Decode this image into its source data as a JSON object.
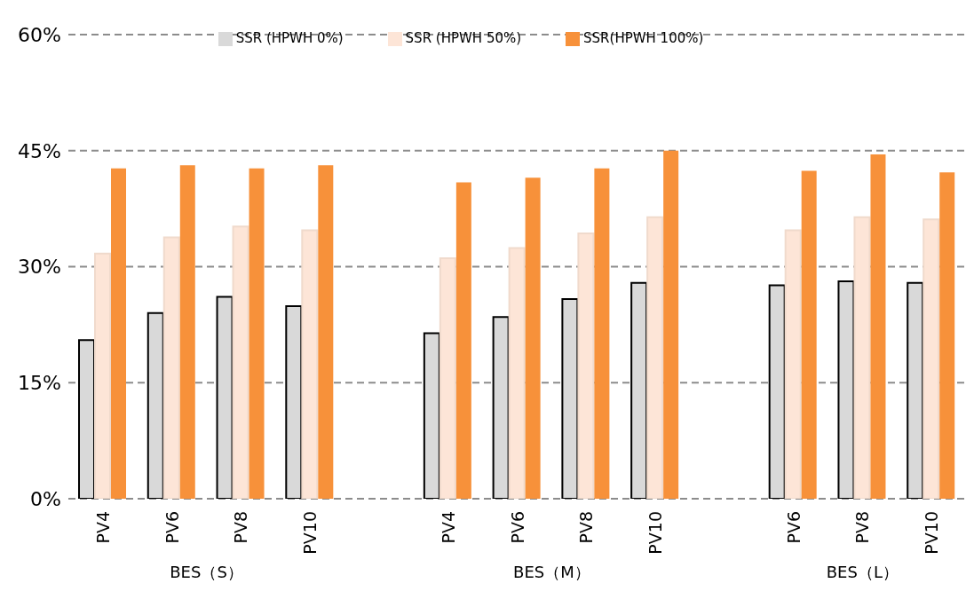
{
  "chart_data": {
    "type": "bar",
    "categories": [
      "PV4",
      "PV6",
      "PV8",
      "PV10",
      null,
      "PV4",
      "PV6",
      "PV8",
      "PV10",
      null,
      "PV6",
      "PV8",
      "PV10"
    ],
    "series": [
      {
        "name": "SSR (HPWH 0%)",
        "color": "#d9d9d9",
        "values": [
          20.5,
          24.0,
          26.1,
          24.9,
          null,
          21.4,
          23.5,
          25.8,
          27.9,
          null,
          27.6,
          28.1,
          27.9
        ]
      },
      {
        "name": "SSR (HPWH 50%)",
        "color": "#fde5d7",
        "values": [
          31.7,
          33.8,
          35.2,
          34.7,
          null,
          31.1,
          32.4,
          34.3,
          36.4,
          null,
          34.7,
          36.4,
          36.1
        ]
      },
      {
        "name": "SSR(HPWH 100%)",
        "color": "#f7913a",
        "values": [
          42.7,
          43.1,
          42.7,
          43.1,
          null,
          40.9,
          41.5,
          42.7,
          45.0,
          null,
          42.4,
          44.5,
          42.2
        ]
      }
    ],
    "ylim": [
      0,
      60
    ],
    "yticks": [
      {
        "value": 0,
        "label": "0%"
      },
      {
        "value": 15,
        "label": "15%"
      },
      {
        "value": 30,
        "label": "30%"
      },
      {
        "value": 45,
        "label": "45%"
      },
      {
        "value": 60,
        "label": "60%"
      }
    ],
    "grid": "y",
    "legend": "top",
    "annotations": [
      "BES（S）",
      "BES（M）",
      "BES（L）"
    ]
  }
}
